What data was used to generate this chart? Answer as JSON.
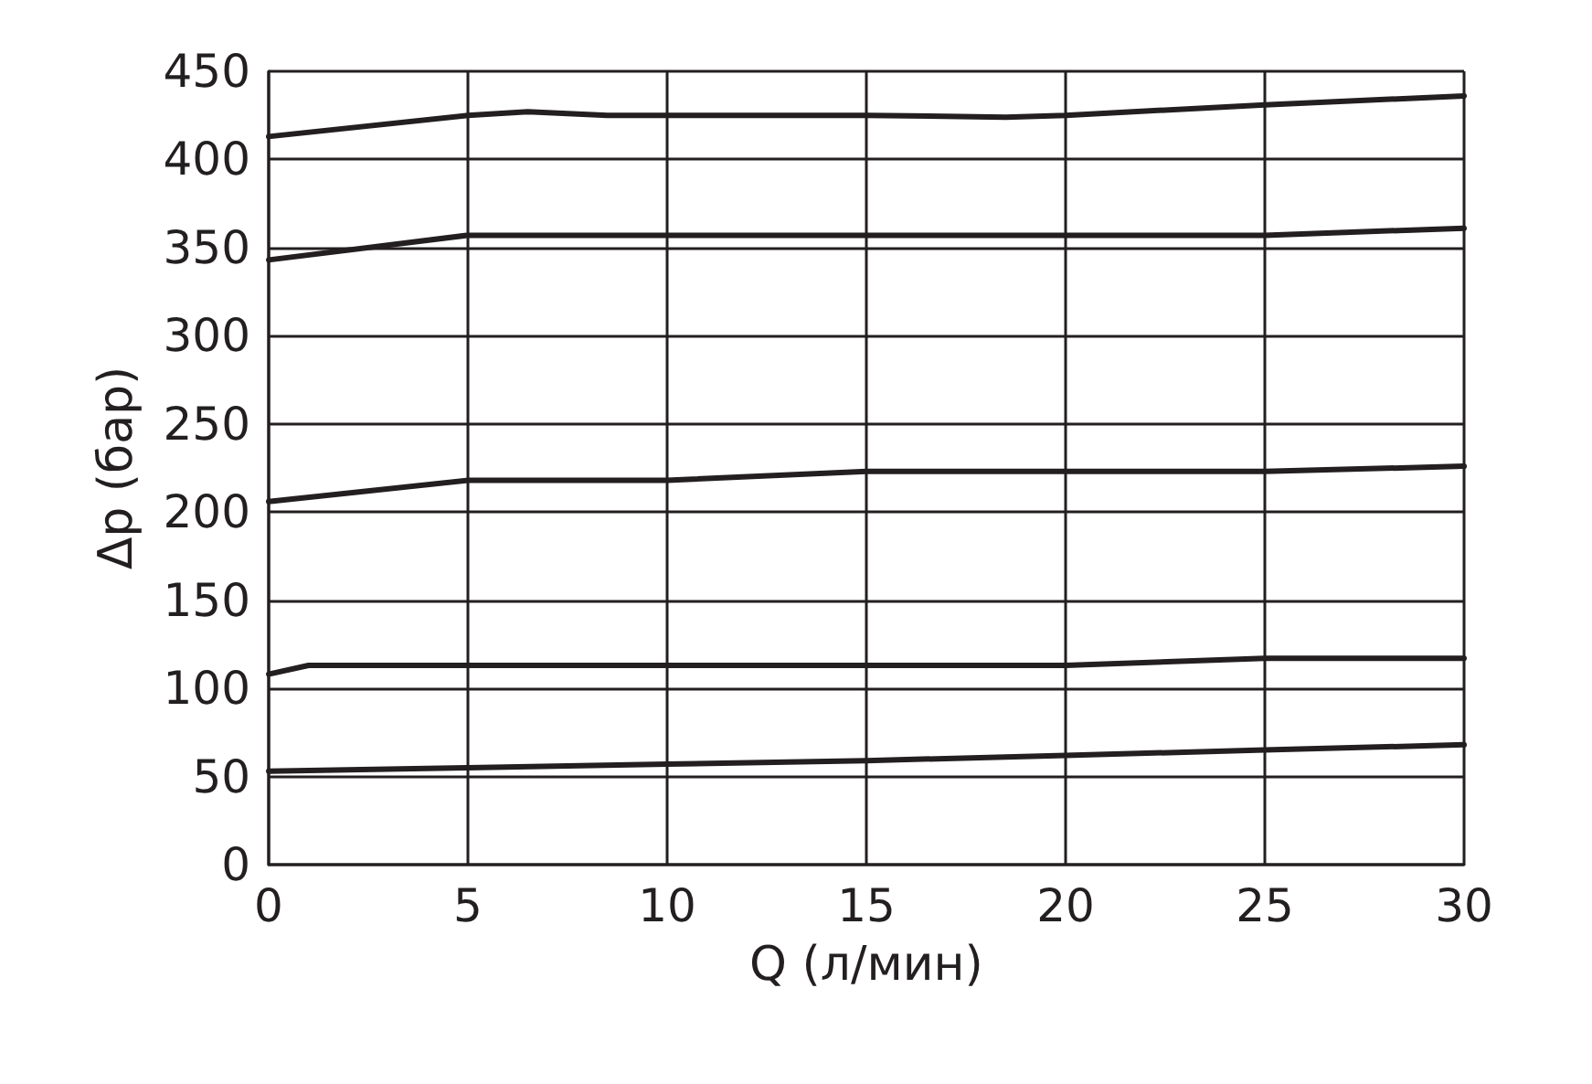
{
  "chart_data": {
    "type": "line",
    "xlabel": "Q (л/мин)",
    "ylabel": "Δp (бар)",
    "xlim": [
      0,
      30
    ],
    "xticks": [
      0,
      5,
      10,
      15,
      20,
      25,
      30
    ],
    "ylim": [
      0,
      450
    ],
    "yticks": [
      0,
      50,
      100,
      150,
      200,
      250,
      300,
      350,
      400,
      450
    ],
    "grid": true,
    "marker": "none",
    "line_style": "solid",
    "series": [
      {
        "color": "#231f20",
        "x": [
          0,
          5,
          6.5,
          8.5,
          10,
          15,
          18.5,
          20,
          25,
          30
        ],
        "values": [
          413,
          425,
          427,
          425,
          425,
          425,
          424,
          425,
          431,
          436
        ]
      },
      {
        "color": "#231f20",
        "x": [
          0,
          5,
          10,
          15,
          20,
          25,
          30
        ],
        "values": [
          343,
          357,
          357,
          357,
          357,
          357,
          361
        ]
      },
      {
        "color": "#231f20",
        "x": [
          0,
          5,
          10,
          15,
          20,
          25,
          30
        ],
        "values": [
          206,
          218,
          218,
          223,
          223,
          223,
          226
        ]
      },
      {
        "color": "#231f20",
        "x": [
          0,
          1,
          5,
          10,
          15,
          20,
          25,
          30
        ],
        "values": [
          108,
          113,
          113,
          113,
          113,
          113,
          117,
          117
        ]
      },
      {
        "color": "#231f20",
        "x": [
          0,
          5,
          10,
          15,
          20,
          25,
          30
        ],
        "values": [
          53,
          55,
          57,
          59,
          62,
          65,
          68
        ]
      }
    ]
  }
}
